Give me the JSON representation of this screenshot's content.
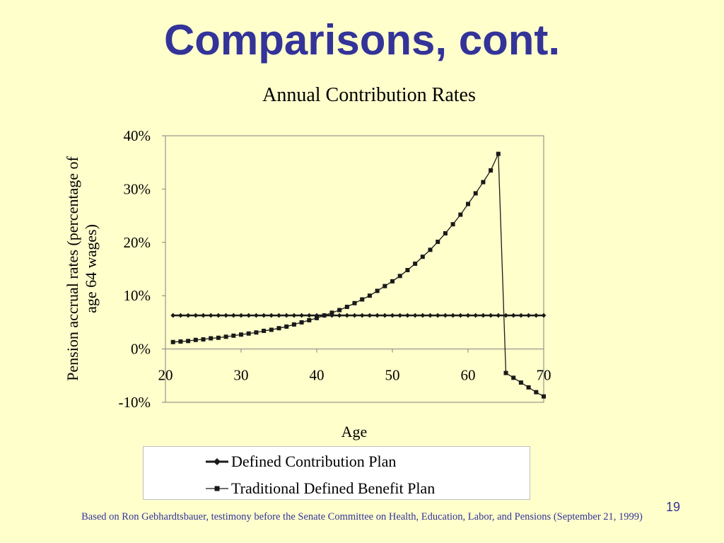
{
  "slide": {
    "title": "Comparisons, cont.",
    "page_number": "19",
    "footnote": "Based on Ron Gebhardtsbauer, testimony before the Senate Committee on Health, Education, Labor, and Pensions (September 21, 1999)"
  },
  "colors": {
    "background": "#ffffcc",
    "title": "#333399",
    "series": "#1a1a1a"
  },
  "chart_data": {
    "type": "line",
    "title": "Annual Contribution Rates",
    "xlabel": "Age",
    "ylabel_lines": [
      "Pension accrual rates (percentage of",
      "age 64 wages)"
    ],
    "xlim": [
      20,
      70
    ],
    "ylim": [
      -0.1,
      0.4
    ],
    "x_ticks": [
      20,
      30,
      40,
      50,
      60,
      70
    ],
    "x_tick_labels": [
      "20",
      "30",
      "40",
      "50",
      "60",
      "70"
    ],
    "y_ticks": [
      -0.1,
      0.0,
      0.1,
      0.2,
      0.3,
      0.4
    ],
    "y_tick_labels": [
      "-10%",
      "0%",
      "10%",
      "20%",
      "30%",
      "40%"
    ],
    "grid": false,
    "legend_position": "bottom",
    "series": [
      {
        "name": "Defined Contribution Plan",
        "marker": "diamond",
        "x": [
          21,
          22,
          23,
          24,
          25,
          26,
          27,
          28,
          29,
          30,
          31,
          32,
          33,
          34,
          35,
          36,
          37,
          38,
          39,
          40,
          41,
          42,
          43,
          44,
          45,
          46,
          47,
          48,
          49,
          50,
          51,
          52,
          53,
          54,
          55,
          56,
          57,
          58,
          59,
          60,
          61,
          62,
          63,
          64,
          65,
          66,
          67,
          68,
          69,
          70
        ],
        "y": [
          0.063,
          0.063,
          0.063,
          0.063,
          0.063,
          0.063,
          0.063,
          0.063,
          0.063,
          0.063,
          0.063,
          0.063,
          0.063,
          0.063,
          0.063,
          0.063,
          0.063,
          0.063,
          0.063,
          0.063,
          0.063,
          0.063,
          0.063,
          0.063,
          0.063,
          0.063,
          0.063,
          0.063,
          0.063,
          0.063,
          0.063,
          0.063,
          0.063,
          0.063,
          0.063,
          0.063,
          0.063,
          0.063,
          0.063,
          0.063,
          0.063,
          0.063,
          0.063,
          0.063,
          0.063,
          0.063,
          0.063,
          0.063,
          0.063,
          0.063
        ]
      },
      {
        "name": "Traditional Defined Benefit Plan",
        "marker": "square",
        "x": [
          21,
          22,
          23,
          24,
          25,
          26,
          27,
          28,
          29,
          30,
          31,
          32,
          33,
          34,
          35,
          36,
          37,
          38,
          39,
          40,
          41,
          42,
          43,
          44,
          45,
          46,
          47,
          48,
          49,
          50,
          51,
          52,
          53,
          54,
          55,
          56,
          57,
          58,
          59,
          60,
          61,
          62,
          63,
          64,
          65,
          66,
          67,
          68,
          69,
          70
        ],
        "y": [
          0.013,
          0.014,
          0.015,
          0.017,
          0.018,
          0.02,
          0.021,
          0.023,
          0.025,
          0.027,
          0.029,
          0.031,
          0.034,
          0.036,
          0.039,
          0.042,
          0.046,
          0.05,
          0.054,
          0.058,
          0.063,
          0.068,
          0.073,
          0.079,
          0.086,
          0.093,
          0.1,
          0.109,
          0.118,
          0.127,
          0.137,
          0.148,
          0.16,
          0.173,
          0.186,
          0.201,
          0.217,
          0.234,
          0.252,
          0.272,
          0.292,
          0.313,
          0.335,
          0.366,
          -0.045,
          -0.054,
          -0.063,
          -0.072,
          -0.081,
          -0.089
        ]
      }
    ]
  }
}
